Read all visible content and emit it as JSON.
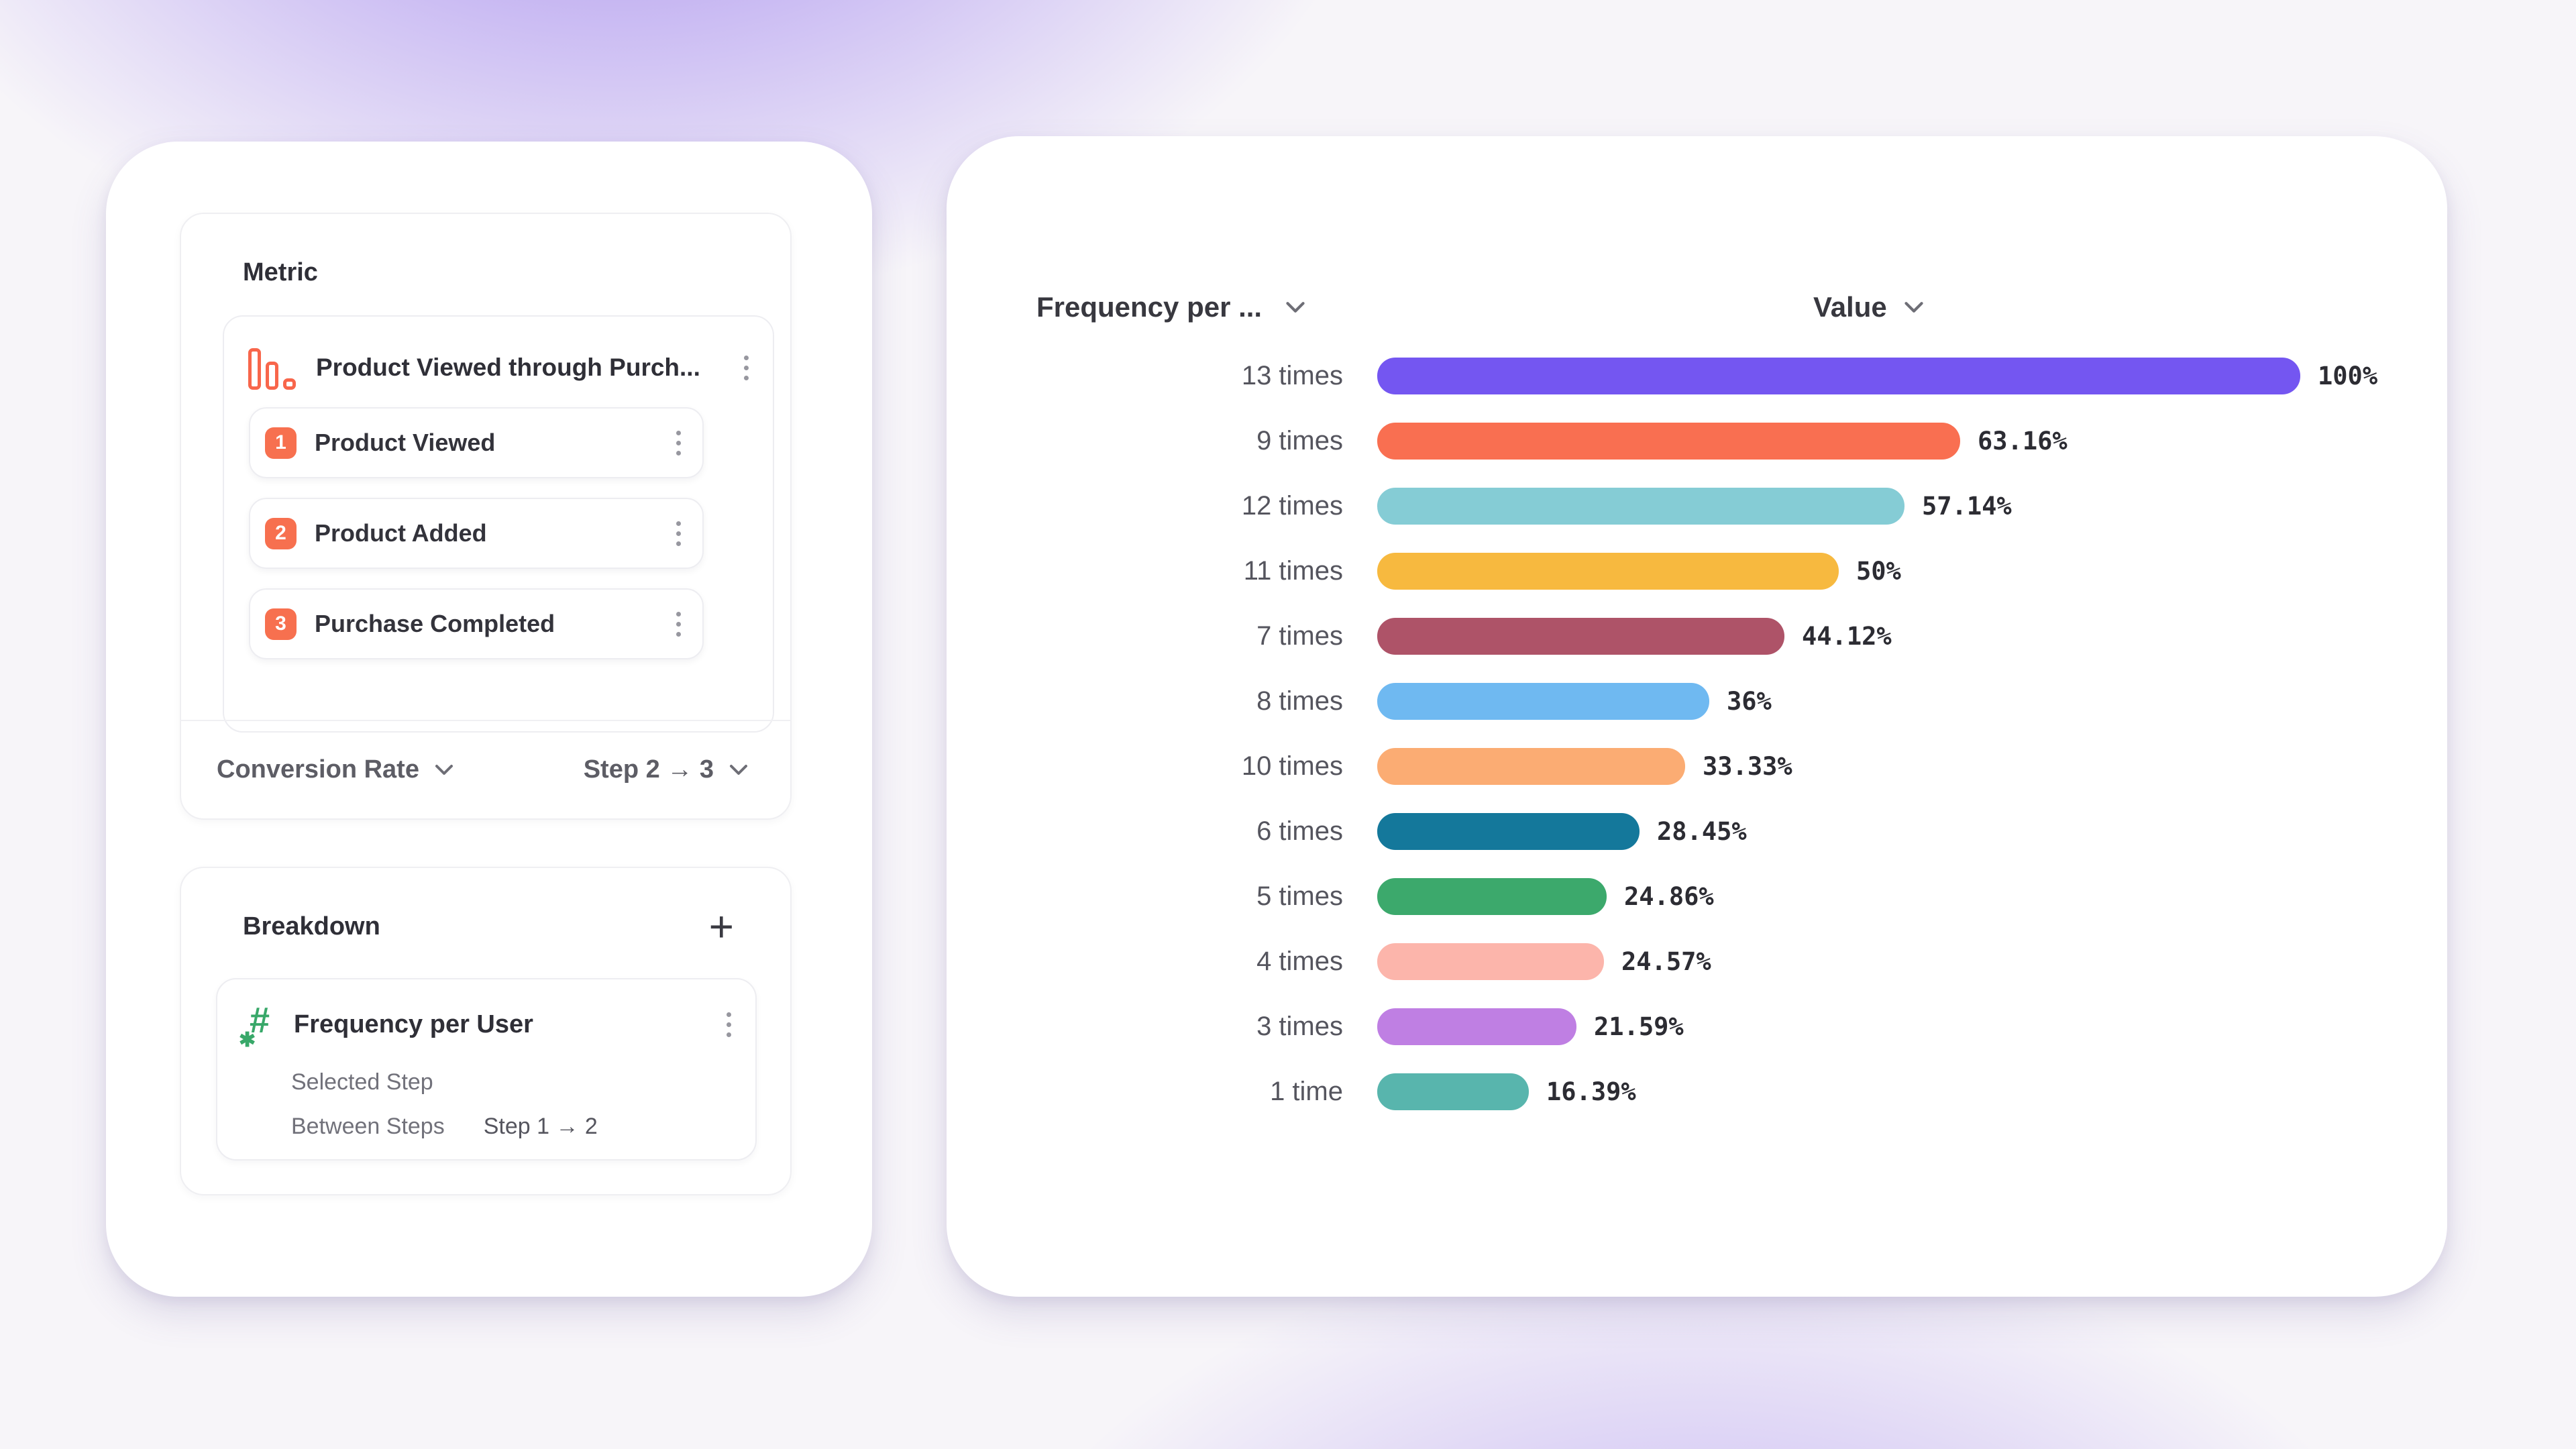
{
  "left_panel": {
    "metric_card": {
      "title": "Metric",
      "funnel": {
        "name": "Product Viewed through Purch...",
        "steps": [
          {
            "num": "1",
            "label": "Product Viewed"
          },
          {
            "num": "2",
            "label": "Product Added"
          },
          {
            "num": "3",
            "label": "Purchase Completed"
          }
        ]
      },
      "footer": {
        "measure": "Conversion Rate",
        "step_range": "Step 2 → 3"
      }
    },
    "breakdown_card": {
      "title": "Breakdown",
      "add_button": "+",
      "item": {
        "name": "Frequency per User",
        "rows": [
          {
            "label": "Selected Step",
            "value": ""
          },
          {
            "label": "Between Steps",
            "value": "Step 1 → 2"
          }
        ]
      }
    }
  },
  "chart_panel": {
    "category_header": "Frequency per ...",
    "value_header": "Value"
  },
  "chart_data": {
    "type": "bar",
    "orientation": "horizontal",
    "title": "",
    "xlabel": "",
    "ylabel": "",
    "xlim": [
      0,
      100
    ],
    "grid": false,
    "legend": "none",
    "categories": [
      "13 times",
      "9 times",
      "12 times",
      "11 times",
      "7 times",
      "8 times",
      "10 times",
      "6 times",
      "5 times",
      "4 times",
      "3 times",
      "1 time"
    ],
    "values": [
      100,
      63.16,
      57.14,
      50,
      44.12,
      36,
      33.33,
      28.45,
      24.86,
      24.57,
      21.59,
      16.39
    ],
    "value_labels": [
      "100%",
      "63.16%",
      "57.14%",
      "50%",
      "44.12%",
      "36%",
      "33.33%",
      "28.45%",
      "24.86%",
      "24.57%",
      "21.59%",
      "16.39%"
    ],
    "bar_colors": [
      "#7456F1",
      "#F96F51",
      "#85CCD5",
      "#F7B93F",
      "#AE5368",
      "#6FB9F1",
      "#FBAC73",
      "#14789B",
      "#3CA96C",
      "#FCB5AB",
      "#BF7FE3",
      "#58B5AD"
    ]
  },
  "colors": {
    "accent_orange": "#F7704F",
    "accent_green": "#38A869",
    "background_glow": "#6F46E6",
    "text_dark": "#2F2F37",
    "text_gray": "#6E6E76"
  }
}
